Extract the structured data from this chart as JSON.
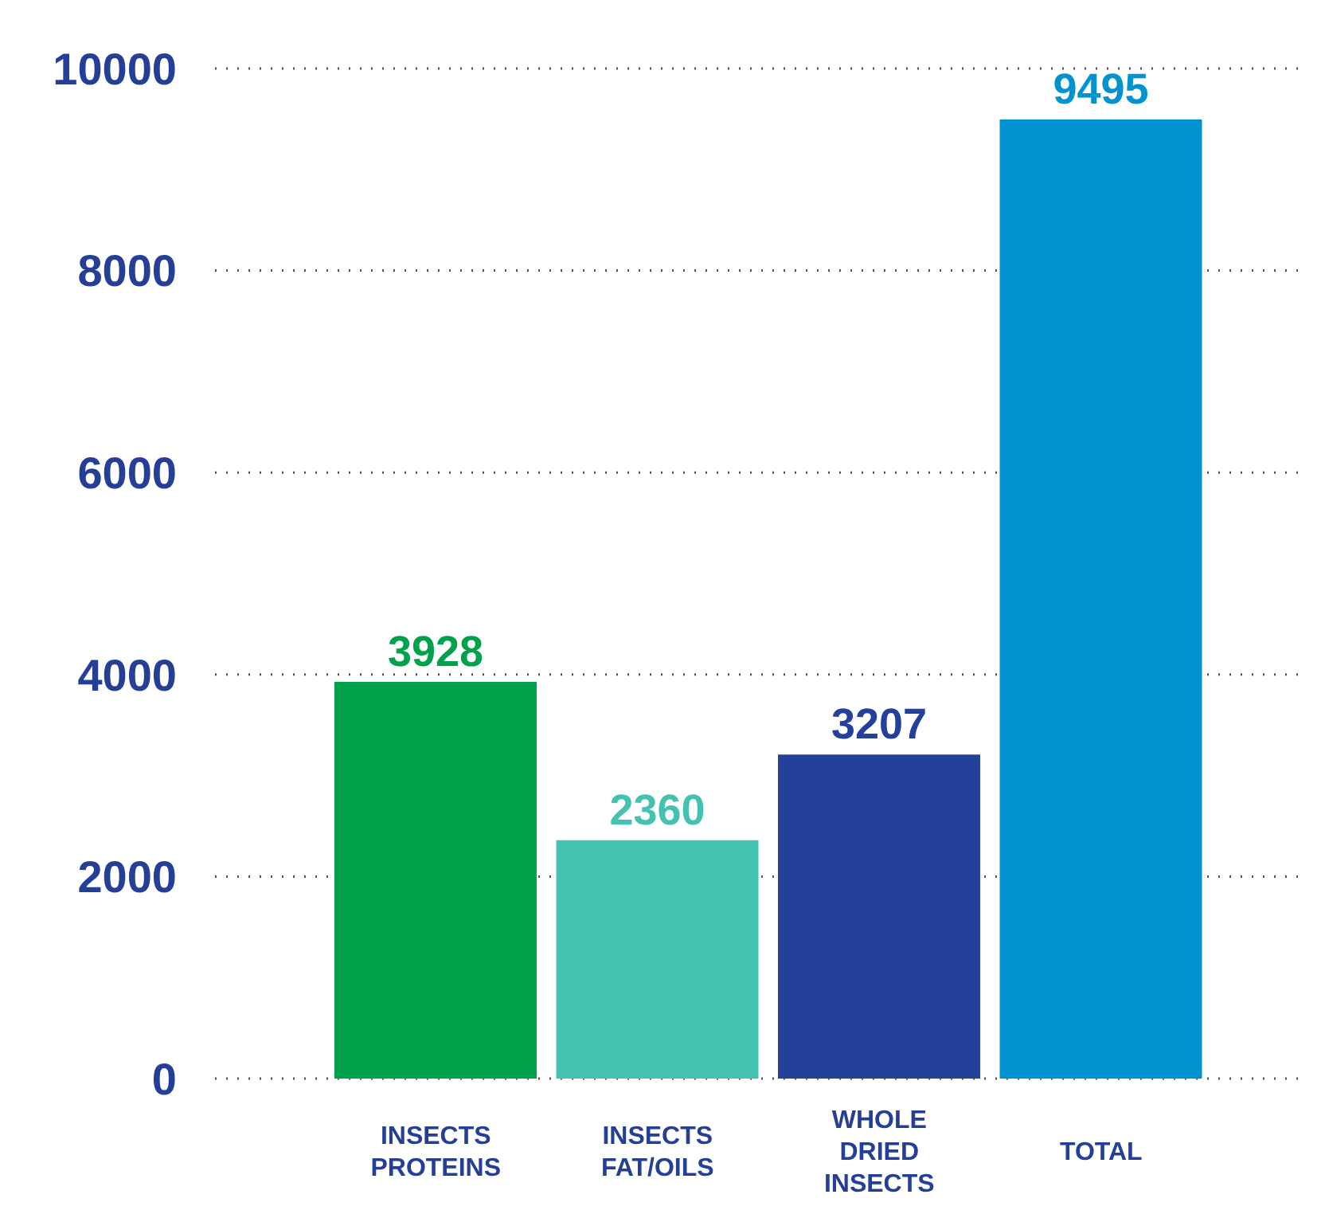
{
  "chart_data": {
    "type": "bar",
    "categories": [
      "INSECTS PROTEINS",
      "INSECTS FAT/OILS",
      "WHOLE DRIED INSECTS",
      "TOTAL"
    ],
    "values": [
      3928,
      2360,
      3207,
      9495
    ],
    "colors": [
      "#00a14b",
      "#45c1b1",
      "#23409a",
      "#0093cf"
    ],
    "ylim": [
      0,
      10000
    ],
    "yticks": [
      0,
      2000,
      4000,
      6000,
      8000,
      10000
    ],
    "grid": "y",
    "data_labels": true
  }
}
